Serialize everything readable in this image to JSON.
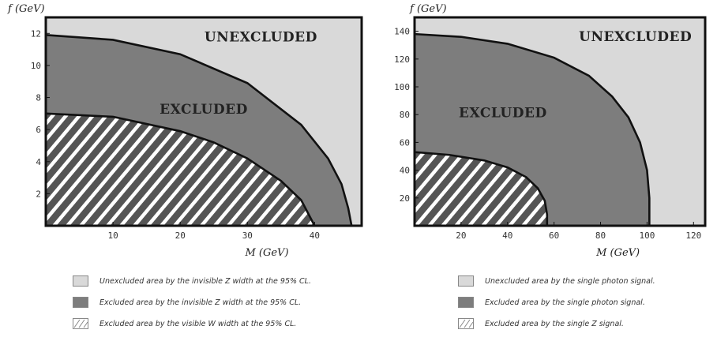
{
  "colors": {
    "light": "#d9d9d9",
    "dark": "#7d7d7d",
    "hatch_bg": "#555555",
    "hatch_stripe": "#ffffff",
    "frame": "#111111"
  },
  "chart_data": [
    {
      "type": "area",
      "ylabel": "f  (GeV)",
      "xlabel": "M  (GeV)",
      "xlim": [
        0,
        47
      ],
      "ylim": [
        0,
        13
      ],
      "xticks": [
        10,
        20,
        30,
        40
      ],
      "yticks": [
        2,
        4,
        6,
        8,
        10,
        12
      ],
      "grid": false,
      "regions": [
        {
          "label": "UNEXCLUDED",
          "fill": "light",
          "label_at": [
            32,
            11.5
          ]
        },
        {
          "label": "EXCLUDED",
          "fill": "dark",
          "label_at": [
            23.5,
            7.0
          ]
        },
        {
          "label": "",
          "fill": "hatch"
        }
      ],
      "series": [
        {
          "boundary_of": "dark",
          "x": [
            0,
            10,
            20,
            30,
            38,
            42,
            44,
            45,
            45.5
          ],
          "y": [
            11.9,
            11.6,
            10.7,
            8.9,
            6.3,
            4.2,
            2.6,
            1.1,
            0
          ]
        },
        {
          "boundary_of": "hatch",
          "x": [
            0,
            10,
            20,
            25,
            30,
            35,
            38,
            40
          ],
          "y": [
            7.0,
            6.8,
            5.9,
            5.2,
            4.2,
            2.8,
            1.6,
            0
          ]
        }
      ],
      "legend": [
        {
          "swatch": "light",
          "text": "Unexcluded area by the invisible Z width at the 95% CL."
        },
        {
          "swatch": "dark",
          "text": "Excluded area by the invisible Z width at the 95% CL."
        },
        {
          "swatch": "hatch",
          "text": "Excluded area by the visible W width at the 95% CL."
        }
      ]
    },
    {
      "type": "area",
      "ylabel": "f  (GeV)",
      "xlabel": "M  (GeV)",
      "xlim": [
        0,
        125
      ],
      "ylim": [
        0,
        150
      ],
      "xticks": [
        20,
        40,
        60,
        80,
        100,
        120
      ],
      "yticks": [
        20,
        40,
        60,
        80,
        100,
        120,
        140
      ],
      "grid": false,
      "regions": [
        {
          "label": "UNEXCLUDED",
          "fill": "light",
          "label_at": [
            95,
            133
          ]
        },
        {
          "label": "EXCLUDED",
          "fill": "dark",
          "label_at": [
            38,
            78
          ]
        },
        {
          "label": "",
          "fill": "hatch"
        }
      ],
      "series": [
        {
          "boundary_of": "dark",
          "x": [
            0,
            20,
            40,
            60,
            75,
            85,
            92,
            97,
            100,
            101,
            101
          ],
          "y": [
            138,
            136,
            131,
            121,
            108,
            93,
            78,
            60,
            40,
            20,
            0
          ]
        },
        {
          "boundary_of": "hatch",
          "x": [
            0,
            15,
            30,
            40,
            48,
            53,
            56,
            57,
            57
          ],
          "y": [
            53,
            51,
            47,
            42,
            35,
            27,
            18,
            8,
            0
          ]
        }
      ],
      "legend": [
        {
          "swatch": "light",
          "text": "Unexcluded area by the single photon signal."
        },
        {
          "swatch": "dark",
          "text": "Excluded area by the single photon signal."
        },
        {
          "swatch": "hatch",
          "text": "Excluded area by the single Z signal."
        }
      ]
    }
  ]
}
